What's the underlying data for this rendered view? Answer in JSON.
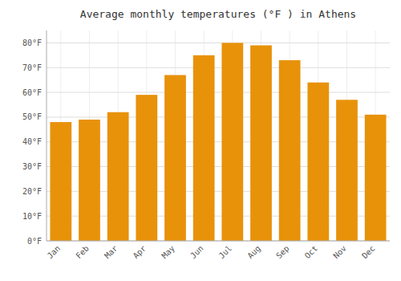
{
  "chart_data": {
    "type": "bar",
    "title": "Average monthly temperatures (°F ) in Athens",
    "categories": [
      "Jan",
      "Feb",
      "Mar",
      "Apr",
      "May",
      "Jun",
      "Jul",
      "Aug",
      "Sep",
      "Oct",
      "Nov",
      "Dec"
    ],
    "values": [
      48,
      49,
      52,
      59,
      67,
      75,
      80,
      79,
      73,
      64,
      57,
      51
    ],
    "color": "#E8920A",
    "ylim": [
      0,
      85
    ],
    "yticks": [
      {
        "value": 0,
        "label": "0°F"
      },
      {
        "value": 10,
        "label": "10°F"
      },
      {
        "value": 20,
        "label": "20°F"
      },
      {
        "value": 30,
        "label": "30°F"
      },
      {
        "value": 40,
        "label": "40°F"
      },
      {
        "value": 50,
        "label": "50°F"
      },
      {
        "value": 60,
        "label": "60°F"
      },
      {
        "value": 70,
        "label": "70°F"
      },
      {
        "value": 80,
        "label": "80°F"
      }
    ],
    "grid": true
  }
}
